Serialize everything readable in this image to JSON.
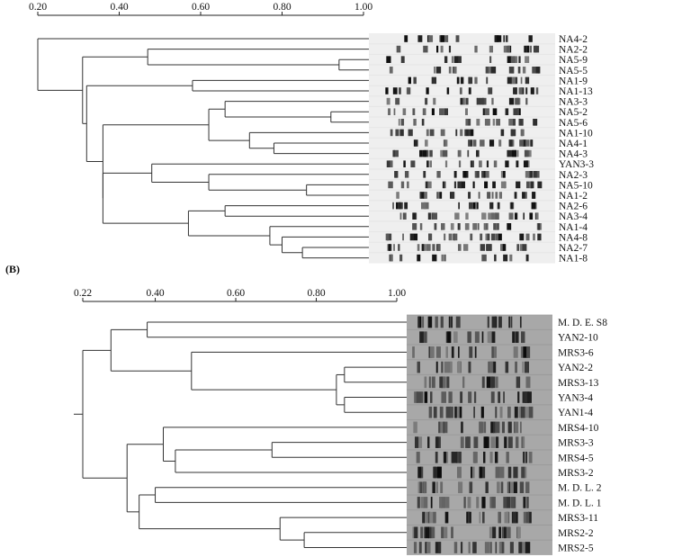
{
  "panel_b_label": "(B)",
  "dendrogram_a": {
    "scale_ticks": [
      "0.20",
      "0.40",
      "0.60",
      "0.80",
      "1.00"
    ],
    "scale_values": [
      0.2,
      0.4,
      0.6,
      0.8,
      1.0
    ],
    "leaves": [
      "NA4-2",
      "NA2-2",
      "NA5-9",
      "NA5-5",
      "NA1-9",
      "NA1-13",
      "NA3-3",
      "NA5-2",
      "NA5-6",
      "NA1-10",
      "NA4-1",
      "NA4-3",
      "YAN3-3",
      "NA2-3",
      "NA5-10",
      "NA1-2",
      "NA2-6",
      "NA3-4",
      "NA1-4",
      "NA4-8",
      "NA2-7",
      "NA1-8"
    ]
  },
  "dendrogram_b": {
    "scale_ticks": [
      "0.22",
      "0.40",
      "0.60",
      "0.80",
      "1.00"
    ],
    "scale_values": [
      0.22,
      0.4,
      0.6,
      0.8,
      1.0
    ],
    "leaves": [
      "M. D. E. S8",
      "YAN2-10",
      "MRS3-6",
      "YAN2-2",
      "MRS3-13",
      "YAN3-4",
      "YAN1-4",
      "MRS4-10",
      "MRS3-3",
      "MRS4-5",
      "MRS3-2",
      "M. D. L. 2",
      "M. D. L. 1",
      "MRS3-11",
      "MRS2-2",
      "MRS2-5"
    ]
  }
}
